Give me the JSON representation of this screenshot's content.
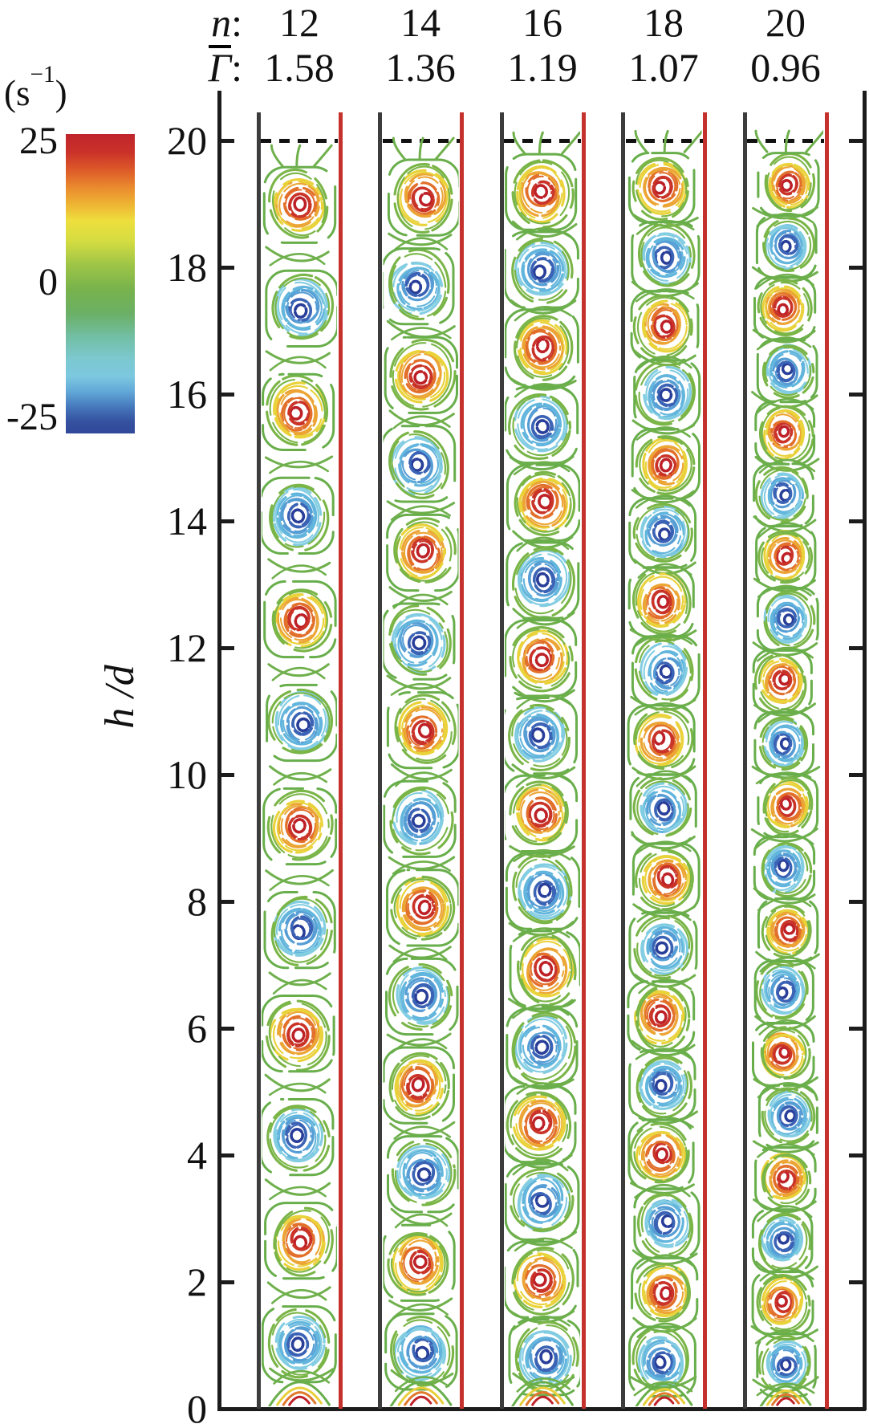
{
  "chart_data": {
    "type": "streamline-vortex-columns",
    "description": "Five vertical fluid columns showing stacked counter-rotating vortex streamlines (vorticity colored red=positive, blue=negative) for different vortex counts n; dashed line marks free surface at h/d = 20; each column bounded by a black wall (left) and red wall (right).",
    "header": {
      "n_symbol": "n",
      "gamma_symbol": "Γ",
      "colon": ":"
    },
    "panels": [
      {
        "n": 12,
        "gamma_bar": "1.58",
        "top_vortex_sign": "positive"
      },
      {
        "n": 14,
        "gamma_bar": "1.36",
        "top_vortex_sign": "positive"
      },
      {
        "n": 16,
        "gamma_bar": "1.19",
        "top_vortex_sign": "positive"
      },
      {
        "n": 18,
        "gamma_bar": "1.07",
        "top_vortex_sign": "positive"
      },
      {
        "n": 20,
        "gamma_bar": "0.96",
        "top_vortex_sign": "positive"
      }
    ],
    "y_axis": {
      "label": "h /d",
      "min": 0,
      "max": 20,
      "tick_values": [
        20,
        18,
        16,
        14,
        12,
        10,
        8,
        6,
        4,
        2,
        0
      ],
      "dashed_line_at": 20,
      "grid": "off"
    },
    "colorbar": {
      "unit_open": "(s",
      "unit_exp": "−1",
      "unit_close": ")",
      "tick_top": "25",
      "tick_mid": "0",
      "tick_bottom": "-25",
      "min": -25,
      "max": 25,
      "stops": [
        [
          0,
          "#c0242c"
        ],
        [
          6,
          "#ca3129"
        ],
        [
          12,
          "#dd5a29"
        ],
        [
          18,
          "#ea8c2e"
        ],
        [
          24,
          "#eeb834"
        ],
        [
          29,
          "#eedf3d"
        ],
        [
          36,
          "#d3dc41"
        ],
        [
          44,
          "#9cc447"
        ],
        [
          52,
          "#77b24c"
        ],
        [
          60,
          "#6bb066"
        ],
        [
          68,
          "#72bfa6"
        ],
        [
          75,
          "#7cc8cf"
        ],
        [
          81,
          "#7cc8e0"
        ],
        [
          86,
          "#62a8d8"
        ],
        [
          91,
          "#4679bd"
        ],
        [
          96,
          "#35519f"
        ],
        [
          100,
          "#31489a"
        ]
      ]
    },
    "walls": {
      "black": "#3c3c3c",
      "red": "#c5312c"
    },
    "palette": {
      "positive": [
        "#bd2026",
        "#ca3428",
        "#e26f2a",
        "#eca534",
        "#e9d23a",
        "#7ab547"
      ],
      "negative": [
        "#283e99",
        "#3b63b5",
        "#559dd4",
        "#62b5dc",
        "#83cde2",
        "#7ab547"
      ],
      "green_outer": "#68ae4b",
      "green_connector": "#6fb04c",
      "bottom_fan": [
        "#c0222a",
        "#e0782c",
        "#e8cf3a"
      ]
    }
  }
}
